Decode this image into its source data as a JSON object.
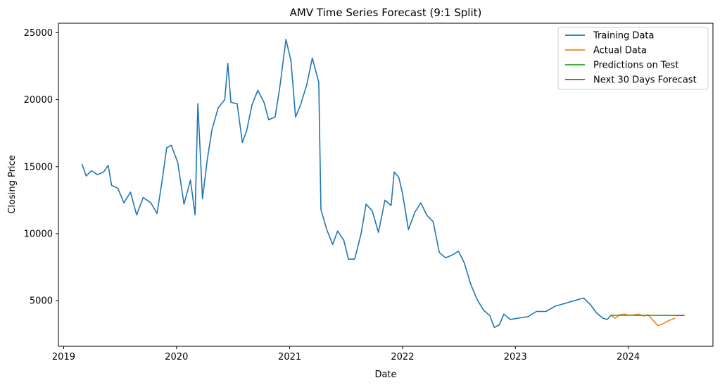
{
  "chart_data": {
    "type": "line",
    "title": "AMV Time Series Forecast (9:1 Split)",
    "xlabel": "Date",
    "ylabel": "Closing Price",
    "x_ticks": [
      "2019",
      "2020",
      "2021",
      "2022",
      "2023",
      "2024"
    ],
    "y_ticks": [
      5000,
      10000,
      15000,
      20000,
      25000
    ],
    "xlim": [
      "2018-12-15",
      "2024-10-01"
    ],
    "ylim": [
      1600,
      25700
    ],
    "grid": false,
    "legend_position": "top-right",
    "series": [
      {
        "name": "Training Data",
        "color": "#1f77b4",
        "points": [
          [
            "2019-03-01",
            15200
          ],
          [
            "2019-03-15",
            14300
          ],
          [
            "2019-04-01",
            14700
          ],
          [
            "2019-04-20",
            14400
          ],
          [
            "2019-05-10",
            14600
          ],
          [
            "2019-05-25",
            15100
          ],
          [
            "2019-06-05",
            13600
          ],
          [
            "2019-06-25",
            13400
          ],
          [
            "2019-07-15",
            12300
          ],
          [
            "2019-08-05",
            13100
          ],
          [
            "2019-08-25",
            11400
          ],
          [
            "2019-09-15",
            12700
          ],
          [
            "2019-10-10",
            12300
          ],
          [
            "2019-10-30",
            11500
          ],
          [
            "2019-11-15",
            13900
          ],
          [
            "2019-11-30",
            16400
          ],
          [
            "2019-12-15",
            16600
          ],
          [
            "2020-01-05",
            15300
          ],
          [
            "2020-01-25",
            12200
          ],
          [
            "2020-02-15",
            14000
          ],
          [
            "2020-03-01",
            11400
          ],
          [
            "2020-03-10",
            19700
          ],
          [
            "2020-03-25",
            12600
          ],
          [
            "2020-04-10",
            15600
          ],
          [
            "2020-04-25",
            17800
          ],
          [
            "2020-05-15",
            19400
          ],
          [
            "2020-06-05",
            20000
          ],
          [
            "2020-06-15",
            22700
          ],
          [
            "2020-06-25",
            19800
          ],
          [
            "2020-07-15",
            19700
          ],
          [
            "2020-08-01",
            16800
          ],
          [
            "2020-08-15",
            17700
          ],
          [
            "2020-09-01",
            19600
          ],
          [
            "2020-09-20",
            20700
          ],
          [
            "2020-10-10",
            19800
          ],
          [
            "2020-10-25",
            18500
          ],
          [
            "2020-11-15",
            18700
          ],
          [
            "2020-11-30",
            20900
          ],
          [
            "2020-12-20",
            24500
          ],
          [
            "2021-01-05",
            22900
          ],
          [
            "2021-01-20",
            18700
          ],
          [
            "2021-02-05",
            19600
          ],
          [
            "2021-02-25",
            21100
          ],
          [
            "2021-03-15",
            23100
          ],
          [
            "2021-04-05",
            21300
          ],
          [
            "2021-04-12",
            11800
          ],
          [
            "2021-05-01",
            10300
          ],
          [
            "2021-05-20",
            9200
          ],
          [
            "2021-06-05",
            10200
          ],
          [
            "2021-06-25",
            9500
          ],
          [
            "2021-07-10",
            8100
          ],
          [
            "2021-07-30",
            8100
          ],
          [
            "2021-08-20",
            10000
          ],
          [
            "2021-09-05",
            12200
          ],
          [
            "2021-09-25",
            11700
          ],
          [
            "2021-10-15",
            10100
          ],
          [
            "2021-11-05",
            12500
          ],
          [
            "2021-11-25",
            12100
          ],
          [
            "2021-12-05",
            14600
          ],
          [
            "2021-12-20",
            14200
          ],
          [
            "2022-01-01",
            13000
          ],
          [
            "2022-01-20",
            10300
          ],
          [
            "2022-02-10",
            11600
          ],
          [
            "2022-03-01",
            12300
          ],
          [
            "2022-03-20",
            11400
          ],
          [
            "2022-04-10",
            10900
          ],
          [
            "2022-04-30",
            8600
          ],
          [
            "2022-05-20",
            8200
          ],
          [
            "2022-06-10",
            8400
          ],
          [
            "2022-07-01",
            8700
          ],
          [
            "2022-07-20",
            7800
          ],
          [
            "2022-08-10",
            6200
          ],
          [
            "2022-08-30",
            5100
          ],
          [
            "2022-09-20",
            4300
          ],
          [
            "2022-10-10",
            3900
          ],
          [
            "2022-10-25",
            3000
          ],
          [
            "2022-11-10",
            3200
          ],
          [
            "2022-11-25",
            4000
          ],
          [
            "2022-12-15",
            3600
          ],
          [
            "2023-01-10",
            3700
          ],
          [
            "2023-02-10",
            3800
          ],
          [
            "2023-03-10",
            4200
          ],
          [
            "2023-04-10",
            4200
          ],
          [
            "2023-05-10",
            4600
          ],
          [
            "2023-06-10",
            4800
          ],
          [
            "2023-07-10",
            5000
          ],
          [
            "2023-08-10",
            5200
          ],
          [
            "2023-09-01",
            4700
          ],
          [
            "2023-09-20",
            4100
          ],
          [
            "2023-10-10",
            3700
          ],
          [
            "2023-10-25",
            3600
          ],
          [
            "2023-11-05",
            3900
          ]
        ]
      },
      {
        "name": "Actual Data",
        "color": "#ff7f0e",
        "points": [
          [
            "2023-11-05",
            3900
          ],
          [
            "2023-11-20",
            3700
          ],
          [
            "2023-12-05",
            3950
          ],
          [
            "2023-12-20",
            4000
          ],
          [
            "2024-01-05",
            3900
          ],
          [
            "2024-01-20",
            3950
          ],
          [
            "2024-02-05",
            4000
          ],
          [
            "2024-02-20",
            3850
          ],
          [
            "2024-03-05",
            3950
          ],
          [
            "2024-03-15",
            3700
          ],
          [
            "2024-03-25",
            3450
          ],
          [
            "2024-04-05",
            3150
          ],
          [
            "2024-04-20",
            3250
          ],
          [
            "2024-05-05",
            3450
          ],
          [
            "2024-05-20",
            3600
          ],
          [
            "2024-06-01",
            3700
          ]
        ]
      },
      {
        "name": "Predictions on Test",
        "color": "#2ca02c",
        "points": [
          [
            "2023-11-05",
            3920
          ],
          [
            "2024-01-01",
            3910
          ],
          [
            "2024-03-01",
            3905
          ],
          [
            "2024-06-01",
            3900
          ]
        ]
      },
      {
        "name": "Next 30 Days Forecast",
        "color": "#d62728",
        "points": [
          [
            "2024-06-01",
            3900
          ],
          [
            "2024-07-01",
            3900
          ]
        ]
      }
    ]
  }
}
